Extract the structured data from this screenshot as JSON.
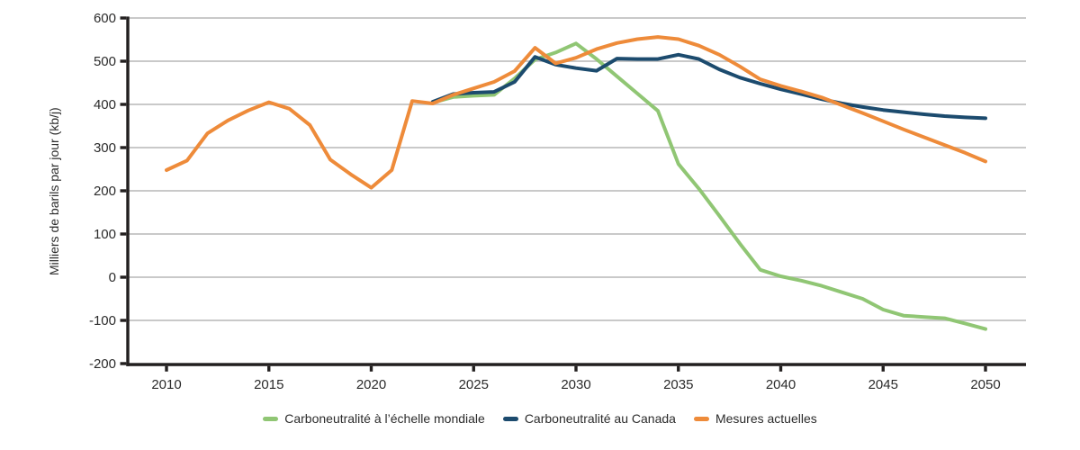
{
  "chart_data": {
    "type": "line",
    "title": "",
    "xlabel": "",
    "ylabel": "Milliers de barils par jour (kb/j)",
    "ylim": [
      -200,
      600
    ],
    "xlim": [
      2008.1,
      2052
    ],
    "y_ticks": [
      600,
      500,
      400,
      300,
      200,
      100,
      0,
      -100,
      -200
    ],
    "x_ticks": [
      2010,
      2015,
      2020,
      2025,
      2030,
      2035,
      2040,
      2045,
      2050
    ],
    "grid": "horizontal",
    "legend_position": "bottom-center",
    "grid_color": "#c9c9c9",
    "axis_color": "#221f1f",
    "text_color": "#2b2b2b",
    "series": [
      {
        "name": "Carboneutralité à l’échelle mondiale",
        "color": "#90c674",
        "x": [
          2023,
          2024,
          2025,
          2026,
          2027,
          2028,
          2029,
          2030,
          2031,
          2032,
          2033,
          2034,
          2035,
          2036,
          2037,
          2038,
          2039,
          2040,
          2041,
          2042,
          2043,
          2044,
          2045,
          2046,
          2047,
          2048,
          2049,
          2050
        ],
        "values": [
          404,
          417,
          420,
          422,
          460,
          504,
          520,
          541,
          505,
          465,
          425,
          385,
          262,
          205,
          142,
          78,
          17,
          2,
          -8,
          -20,
          -35,
          -50,
          -75,
          -89,
          -92,
          -95,
          -107,
          -120
        ]
      },
      {
        "name": "Carboneutralité au Canada",
        "color": "#1c4b6e",
        "x": [
          2023,
          2024,
          2025,
          2026,
          2027,
          2028,
          2029,
          2030,
          2031,
          2032,
          2033,
          2034,
          2035,
          2036,
          2037,
          2038,
          2039,
          2040,
          2041,
          2042,
          2043,
          2044,
          2045,
          2046,
          2047,
          2048,
          2049,
          2050
        ],
        "values": [
          406,
          424,
          427,
          429,
          452,
          510,
          492,
          484,
          478,
          506,
          505,
          505,
          515,
          505,
          481,
          462,
          448,
          435,
          424,
          412,
          402,
          394,
          387,
          382,
          377,
          373,
          370,
          368
        ]
      },
      {
        "name": "Mesures actuelles",
        "color": "#ee8b3a",
        "x": [
          2010,
          2011,
          2012,
          2013,
          2014,
          2015,
          2016,
          2017,
          2018,
          2019,
          2020,
          2021,
          2022,
          2023,
          2024,
          2025,
          2026,
          2027,
          2028,
          2029,
          2030,
          2031,
          2032,
          2033,
          2034,
          2035,
          2036,
          2037,
          2038,
          2039,
          2040,
          2041,
          2042,
          2043,
          2044,
          2045,
          2046,
          2047,
          2048,
          2049,
          2050
        ],
        "values": [
          248,
          270,
          333,
          363,
          386,
          405,
          390,
          352,
          272,
          238,
          207,
          248,
          408,
          402,
          422,
          437,
          452,
          477,
          531,
          495,
          508,
          528,
          542,
          551,
          556,
          551,
          536,
          515,
          488,
          458,
          443,
          430,
          416,
          398,
          380,
          361,
          342,
          324,
          306,
          288,
          268
        ]
      }
    ]
  }
}
